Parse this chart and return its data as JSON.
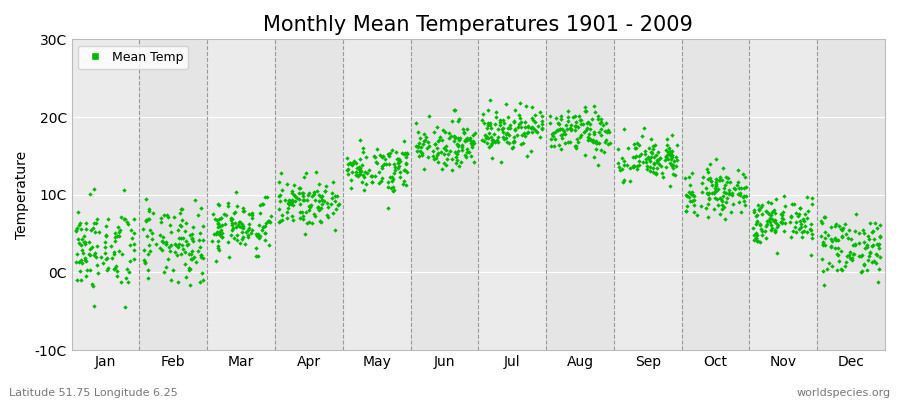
{
  "title": "Monthly Mean Temperatures 1901 - 2009",
  "ylabel": "Temperature",
  "month_labels": [
    "Jan",
    "Feb",
    "Mar",
    "Apr",
    "May",
    "Jun",
    "Jul",
    "Aug",
    "Sep",
    "Oct",
    "Nov",
    "Dec"
  ],
  "ylim": [
    -10,
    30
  ],
  "yticks": [
    -10,
    0,
    10,
    20,
    30
  ],
  "ytick_labels": [
    "-10C",
    "0C",
    "10C",
    "20C",
    "30C"
  ],
  "marker_color": "#00BB00",
  "background_color": "#EBEBEB",
  "figure_color": "#FFFFFF",
  "legend_label": "Mean Temp",
  "bottom_left": "Latitude 51.75 Longitude 6.25",
  "bottom_right": "worldspecies.org",
  "title_fontsize": 15,
  "axis_fontsize": 10,
  "tick_fontsize": 10,
  "monthly_means": [
    3.0,
    3.5,
    6.0,
    9.0,
    13.5,
    16.5,
    18.5,
    18.0,
    14.5,
    10.5,
    6.5,
    3.5
  ],
  "monthly_stds": [
    2.8,
    2.5,
    1.8,
    1.5,
    1.5,
    1.5,
    1.5,
    1.5,
    1.5,
    1.5,
    1.5,
    2.0
  ],
  "n_years": 109,
  "random_seed": 42
}
